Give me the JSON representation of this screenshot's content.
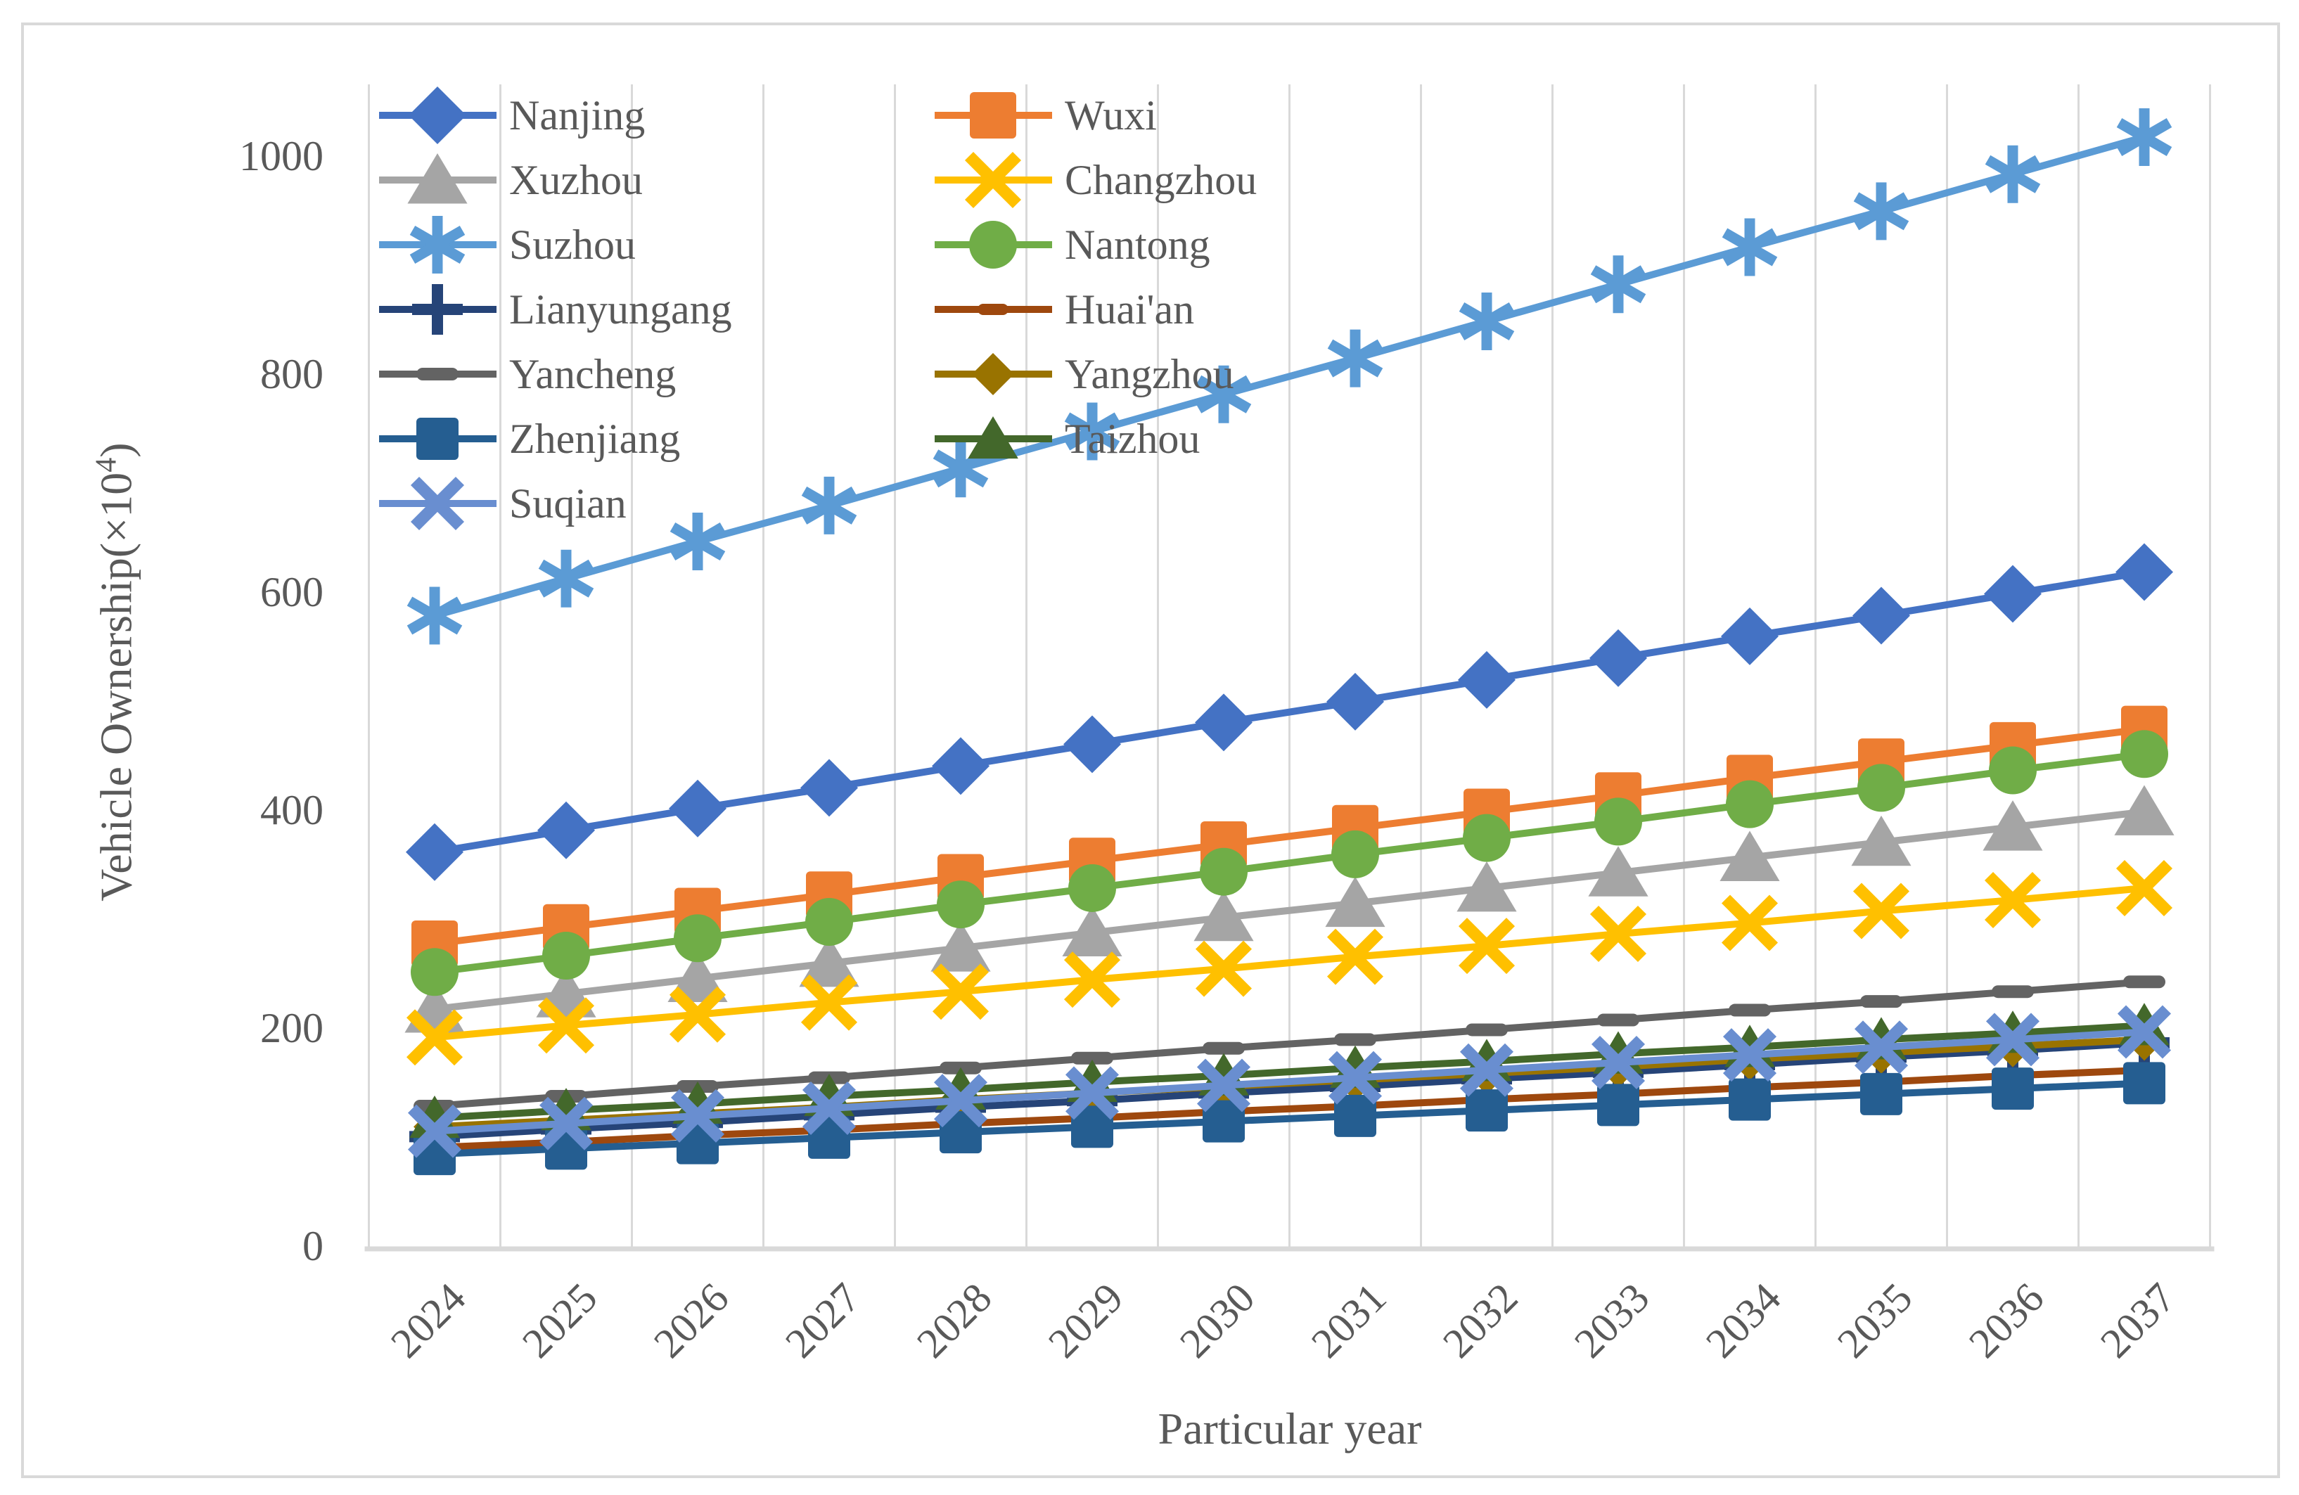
{
  "chart_data": {
    "type": "line",
    "title": "",
    "xlabel": "Particular year",
    "ylabel_prefix": "Vehicle Ownership(×10",
    "ylabel_sup": "4",
    "ylabel_suffix": ")",
    "grid": "vertical-only",
    "legend_position": "top-left two-column",
    "axis_color": "#D9D9D9",
    "text_color": "#595959",
    "x_categories": [
      "2024",
      "2025",
      "2026",
      "2027",
      "2028",
      "2029",
      "2030",
      "2031",
      "2032",
      "2033",
      "2034",
      "2035",
      "2036",
      "2037"
    ],
    "y_ticks": [
      "0",
      "200",
      "400",
      "600",
      "800",
      "1000"
    ],
    "y_tick_values": [
      0,
      200,
      400,
      600,
      800,
      1000
    ],
    "ylim": [
      0,
      1068
    ],
    "series": [
      {
        "name": "Nanjing",
        "color": "#4472C4",
        "marker": "diamond",
        "values": [
          364,
          384,
          404,
          423,
          443,
          463,
          483,
          502,
          522,
          542,
          562,
          581,
          601,
          621
        ]
      },
      {
        "name": "Wuxi",
        "color": "#ED7D31",
        "marker": "square",
        "values": [
          280,
          295,
          310,
          325,
          341,
          356,
          371,
          386,
          401,
          416,
          432,
          447,
          462,
          477
        ]
      },
      {
        "name": "Xuzhou",
        "color": "#A5A5A5",
        "marker": "triangle",
        "values": [
          220,
          234,
          248,
          262,
          276,
          290,
          304,
          317,
          331,
          345,
          359,
          373,
          387,
          401
        ]
      },
      {
        "name": "Changzhou",
        "color": "#FFC000",
        "marker": "x",
        "values": [
          194,
          205,
          215,
          226,
          236,
          247,
          257,
          268,
          278,
          289,
          299,
          310,
          320,
          331
        ]
      },
      {
        "name": "Suzhou",
        "color": "#5B9BD5",
        "marker": "asterisk",
        "values": [
          581,
          615,
          649,
          682,
          716,
          750,
          784,
          817,
          851,
          885,
          919,
          952,
          986,
          1020
        ]
      },
      {
        "name": "Nantong",
        "color": "#70AD47",
        "marker": "circle",
        "values": [
          254,
          269,
          285,
          300,
          316,
          331,
          346,
          362,
          377,
          392,
          408,
          423,
          439,
          454
        ]
      },
      {
        "name": "Lianyungang",
        "color": "#264478",
        "marker": "plus",
        "values": [
          103,
          110,
          116,
          123,
          130,
          136,
          143,
          149,
          156,
          162,
          169,
          176,
          182,
          189
        ]
      },
      {
        "name": "Huai'an",
        "color": "#9E480E",
        "marker": "dash-short",
        "values": [
          93,
          98,
          104,
          109,
          115,
          120,
          126,
          131,
          137,
          142,
          148,
          153,
          159,
          164
        ]
      },
      {
        "name": "Yancheng",
        "color": "#636363",
        "marker": "dash-long",
        "values": [
          131,
          140,
          149,
          157,
          166,
          175,
          184,
          192,
          201,
          210,
          219,
          227,
          236,
          245
        ]
      },
      {
        "name": "Yangzhou",
        "color": "#997300",
        "marker": "diamond-small",
        "values": [
          112,
          118,
          124,
          130,
          137,
          143,
          149,
          155,
          161,
          167,
          174,
          180,
          186,
          192
        ]
      },
      {
        "name": "Zhenjiang",
        "color": "#255E91",
        "marker": "square-small",
        "values": [
          87,
          92,
          97,
          102,
          107,
          112,
          117,
          122,
          127,
          132,
          137,
          142,
          147,
          152
        ]
      },
      {
        "name": "Taizhou",
        "color": "#43682B",
        "marker": "triangle-small",
        "values": [
          120,
          127,
          133,
          140,
          146,
          153,
          159,
          166,
          172,
          179,
          185,
          192,
          198,
          205
        ]
      },
      {
        "name": "Suqian",
        "color": "#698ED0",
        "marker": "x-small",
        "values": [
          108,
          115,
          122,
          129,
          136,
          143,
          150,
          157,
          164,
          171,
          178,
          185,
          192,
          199
        ]
      }
    ]
  }
}
